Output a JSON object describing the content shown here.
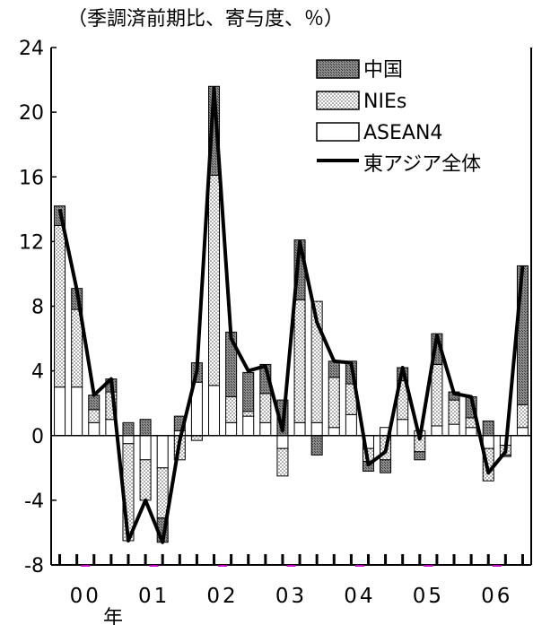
{
  "chart_data": {
    "type": "bar",
    "subtype": "stacked-bar-with-line",
    "title": "（季調済前期比、寄与度、％）",
    "xlabel": "年",
    "ylim": [
      -8,
      24
    ],
    "yticks": [
      "24",
      "20",
      "16",
      "12",
      "8",
      "4",
      "0",
      "-4",
      "-8"
    ],
    "year_labels": [
      "00",
      "01",
      "02",
      "03",
      "04",
      "05",
      "06"
    ],
    "categories": [
      "2000Q1",
      "2000Q2",
      "2000Q3",
      "2000Q4",
      "2001Q1",
      "2001Q2",
      "2001Q3",
      "2001Q4",
      "2002Q1",
      "2002Q2",
      "2002Q3",
      "2002Q4",
      "2003Q1",
      "2003Q2",
      "2003Q3",
      "2003Q4",
      "2004Q1",
      "2004Q2",
      "2004Q3",
      "2004Q4",
      "2005Q1",
      "2005Q2",
      "2005Q3",
      "2005Q4",
      "2006Q1",
      "2006Q2",
      "2006Q3",
      "2006Q4"
    ],
    "series": [
      {
        "name": "ASEAN4",
        "values": [
          3.0,
          3.0,
          0.8,
          1.0,
          -0.5,
          -1.5,
          -2.0,
          0.3,
          3.3,
          3.1,
          0.8,
          1.2,
          0.8,
          -0.8,
          0.8,
          0.8,
          0.5,
          1.3,
          -0.8,
          0.5,
          1.0,
          0.3,
          0.6,
          0.7,
          0.5,
          -0.8,
          -0.6,
          0.5
        ]
      },
      {
        "name": "NIEs",
        "values": [
          10.0,
          4.8,
          0.8,
          1.7,
          -6.0,
          -2.5,
          -3.1,
          -1.5,
          -0.3,
          13.0,
          1.6,
          0.3,
          1.8,
          -1.7,
          7.6,
          7.5,
          3.1,
          1.9,
          -0.8,
          -1.5,
          2.4,
          -1.0,
          3.8,
          1.5,
          0.6,
          -2.0,
          -0.6,
          1.4
        ]
      },
      {
        "name": "中国",
        "values": [
          1.2,
          1.3,
          0.9,
          0.8,
          0.8,
          1.0,
          -1.5,
          0.9,
          1.2,
          5.5,
          4.0,
          2.4,
          1.8,
          2.2,
          3.7,
          -1.2,
          1.0,
          1.4,
          -0.6,
          -0.8,
          0.8,
          -0.5,
          1.9,
          0.5,
          1.3,
          0.9,
          -0.1,
          8.6
        ]
      }
    ],
    "line": {
      "name": "東アジア全体",
      "values": [
        14.0,
        9.0,
        2.5,
        3.5,
        -6.5,
        -4.0,
        -6.6,
        -0.3,
        4.0,
        21.5,
        6.0,
        4.0,
        4.3,
        0.3,
        12.0,
        7.0,
        4.6,
        4.5,
        -1.8,
        -1.0,
        4.2,
        -0.2,
        6.2,
        2.6,
        2.4,
        -2.3,
        -1.0,
        10.5
      ]
    },
    "legend": {
      "position": "top-right",
      "order": [
        "中国",
        "NIEs",
        "ASEAN4",
        "東アジア全体"
      ]
    },
    "colors": {
      "china": "#8c8c8c",
      "nies": "#e6e6e6",
      "asean": "#ffffff",
      "line": "#000000",
      "year_marker": "#cc00cc"
    },
    "grid": false
  }
}
